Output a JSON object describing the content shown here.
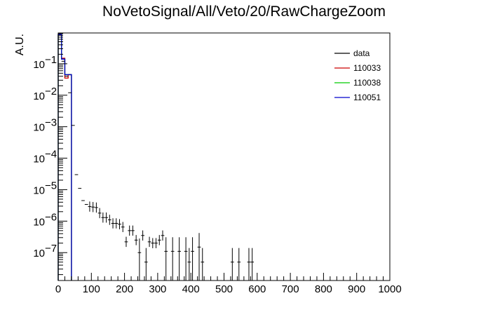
{
  "chart_data": {
    "type": "histogram",
    "title": "NoVetoSignal/All/Veto/20/RawChargeZoom",
    "xlabel": "",
    "ylabel": "A.U.",
    "xlim": [
      0,
      1000
    ],
    "ylim": [
      1.3e-08,
      0.95
    ],
    "y_scale": "log",
    "x_ticks": [
      0,
      100,
      200,
      300,
      400,
      500,
      600,
      700,
      800,
      900,
      1000
    ],
    "y_ticks": [
      {
        "value": 1e-07,
        "label": "10",
        "exp": "−7"
      },
      {
        "value": 1e-06,
        "label": "10",
        "exp": "−6"
      },
      {
        "value": 1e-05,
        "label": "10",
        "exp": "−5"
      },
      {
        "value": 0.0001,
        "label": "10",
        "exp": "−4"
      },
      {
        "value": 0.001,
        "label": "10",
        "exp": "−3"
      },
      {
        "value": 0.01,
        "label": "10",
        "exp": "−2"
      },
      {
        "value": 0.1,
        "label": "10",
        "exp": "−1"
      }
    ],
    "grid": false,
    "legend_position": "top-right",
    "legend": [
      {
        "name": "data",
        "color": "#000000"
      },
      {
        "name": "110033",
        "color": "#cc0000"
      },
      {
        "name": "110038",
        "color": "#00cc00"
      },
      {
        "name": "110051",
        "color": "#0000cc"
      }
    ],
    "series": [
      {
        "name": "data",
        "kind": "points",
        "color": "#000000",
        "bin_width": 10,
        "points": [
          [
            15,
            0.12
          ],
          [
            25,
            0.04
          ],
          [
            35,
            0.012
          ],
          [
            45,
            0.0011
          ],
          [
            55,
            3e-05
          ],
          [
            65,
            1.1e-05
          ],
          [
            75,
            4.5e-06
          ],
          [
            85,
            3.4e-06
          ],
          [
            95,
            2.9e-06
          ],
          [
            105,
            2.8e-06
          ],
          [
            115,
            2.7e-06
          ],
          [
            125,
            1.8e-06
          ],
          [
            135,
            1.3e-06
          ],
          [
            145,
            1.3e-06
          ],
          [
            155,
            1.1e-06
          ],
          [
            165,
            8.5e-07
          ],
          [
            175,
            8.5e-07
          ],
          [
            185,
            8e-07
          ],
          [
            195,
            6.5e-07
          ],
          [
            205,
            2.2e-07
          ],
          [
            215,
            5e-07
          ],
          [
            225,
            5e-07
          ],
          [
            235,
            2.5e-07
          ],
          [
            245,
            1e-07
          ],
          [
            255,
            3.5e-07
          ],
          [
            265,
            5e-08
          ],
          [
            275,
            2.2e-07
          ],
          [
            285,
            2e-07
          ],
          [
            295,
            2e-07
          ],
          [
            305,
            2.5e-07
          ],
          [
            315,
            3.5e-07
          ],
          [
            325,
            1.1e-07
          ],
          [
            345,
            1.1e-07
          ],
          [
            365,
            1.1e-07
          ],
          [
            385,
            1.1e-07
          ],
          [
            395,
            5e-08
          ],
          [
            405,
            1.1e-07
          ],
          [
            425,
            1.5e-07
          ],
          [
            435,
            5e-08
          ],
          [
            525,
            5e-08
          ],
          [
            545,
            5e-08
          ],
          [
            575,
            5e-08
          ],
          [
            585,
            5e-08
          ]
        ]
      },
      {
        "name": "110033",
        "kind": "step",
        "color": "#cc0000",
        "edges": [
          0,
          10,
          20,
          30,
          40
        ],
        "values": [
          0.85,
          0.15,
          0.035,
          0.045
        ]
      },
      {
        "name": "110038",
        "kind": "step",
        "color": "#00cc00",
        "edges": [
          0,
          10,
          20,
          30,
          40
        ],
        "values": [
          0.85,
          0.14,
          0.045,
          0.045
        ]
      },
      {
        "name": "110051",
        "kind": "step",
        "color": "#0000cc",
        "edges": [
          0,
          10,
          20,
          30,
          40
        ],
        "values": [
          0.85,
          0.14,
          0.045,
          0.045
        ]
      }
    ]
  }
}
